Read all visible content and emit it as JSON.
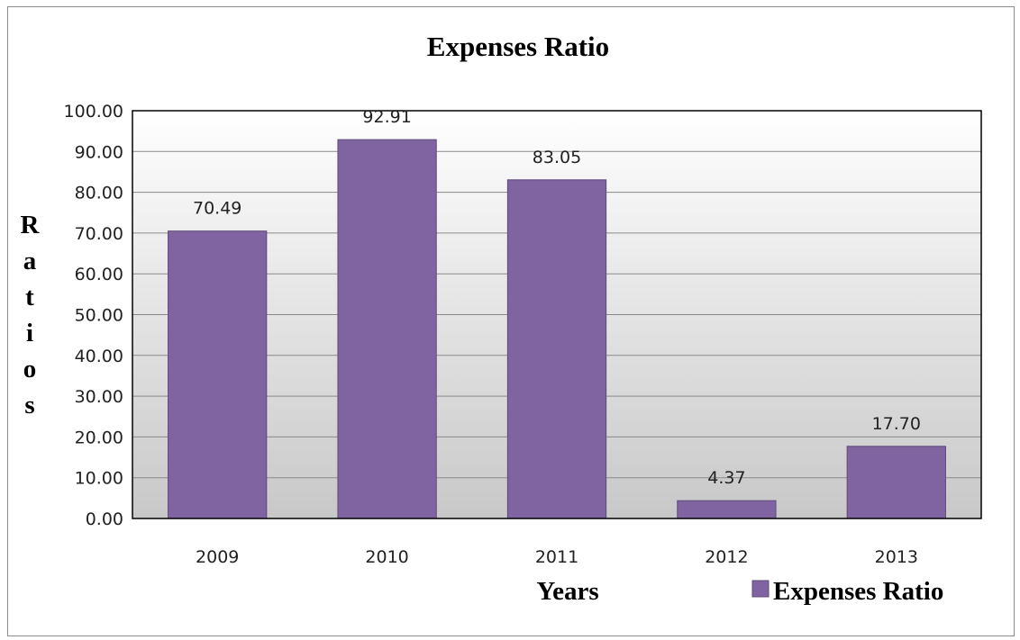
{
  "chart_data": {
    "type": "bar",
    "title": "Expenses Ratio",
    "xlabel": "Years",
    "ylabel": "Ratios",
    "categories": [
      "2009",
      "2010",
      "2011",
      "2012",
      "2013"
    ],
    "series": [
      {
        "name": "Expenses Ratio",
        "values": [
          70.49,
          92.91,
          83.05,
          4.37,
          17.7
        ],
        "labels": [
          "70.49",
          "92.91",
          "83.05",
          "4.37",
          "17.70"
        ]
      }
    ],
    "ylim": [
      0,
      100
    ],
    "yticks": [
      "0.00",
      "10.00",
      "20.00",
      "30.00",
      "40.00",
      "50.00",
      "60.00",
      "70.00",
      "80.00",
      "90.00",
      "100.00"
    ],
    "grid": true,
    "legend_position": "bottom-right",
    "colors": {
      "bar": "#8064a2",
      "bar_border": "#5c4a7a",
      "plot_top": "#ffffff",
      "plot_bottom": "#c8c8c8"
    }
  }
}
